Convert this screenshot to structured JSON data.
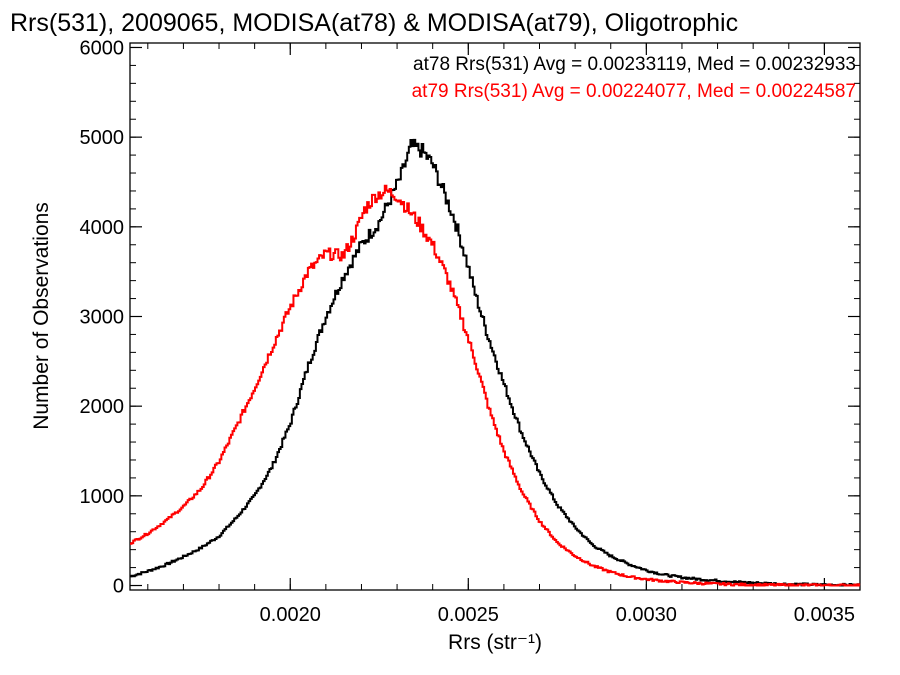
{
  "chart_data": {
    "type": "line",
    "title": "Rrs(531), 2009065, MODISA(at78) & MODISA(at79), Oligotrophic",
    "xlabel": "Rrs (str⁻¹)",
    "ylabel": "Number of Observations",
    "xlim": [
      0.00155,
      0.0036
    ],
    "ylim": [
      -50,
      6050
    ],
    "xticks": [
      0.002,
      0.0025,
      0.003,
      0.0035
    ],
    "xtick_labels": [
      "0.0020",
      "0.0025",
      "0.0030",
      "0.0035"
    ],
    "yticks": [
      0,
      1000,
      2000,
      3000,
      4000,
      5000,
      6000
    ],
    "ytick_labels": [
      "0",
      "1000",
      "2000",
      "3000",
      "4000",
      "5000",
      "6000"
    ],
    "legend_position": "top-right",
    "series": [
      {
        "color": "#000000",
        "label": "at78 Rrs(531) Avg = 0.00233119, Med = 0.00232933",
        "x": [
          0.00155,
          0.0016,
          0.00165,
          0.0017,
          0.00175,
          0.0018,
          0.00185,
          0.0019,
          0.00195,
          0.002,
          0.00205,
          0.0021,
          0.00215,
          0.0022,
          0.00225,
          0.00228,
          0.00231,
          0.00234,
          0.00237,
          0.0024,
          0.00243,
          0.00246,
          0.00249,
          0.00252,
          0.00255,
          0.0026,
          0.00265,
          0.0027,
          0.00275,
          0.0028,
          0.00285,
          0.0029,
          0.00295,
          0.003,
          0.00305,
          0.0031,
          0.00315,
          0.0032,
          0.00325,
          0.0033,
          0.0034,
          0.0035,
          0.0036
        ],
        "y": [
          100,
          160,
          230,
          320,
          420,
          550,
          760,
          1000,
          1330,
          1800,
          2440,
          3000,
          3450,
          3800,
          4050,
          4300,
          4550,
          4900,
          4850,
          4700,
          4400,
          4100,
          3700,
          3250,
          2850,
          2250,
          1700,
          1250,
          900,
          650,
          450,
          330,
          240,
          170,
          120,
          90,
          70,
          55,
          40,
          30,
          15,
          8,
          5
        ]
      },
      {
        "color": "#ff0000",
        "label": "at79 Rrs(531) Avg = 0.00224077, Med = 0.00224587",
        "x": [
          0.00155,
          0.0016,
          0.00165,
          0.0017,
          0.00175,
          0.0018,
          0.00185,
          0.0019,
          0.00195,
          0.002,
          0.00205,
          0.0021,
          0.00215,
          0.00218,
          0.00221,
          0.00224,
          0.00227,
          0.0023,
          0.00233,
          0.00236,
          0.0024,
          0.00244,
          0.00248,
          0.00252,
          0.00256,
          0.0026,
          0.00265,
          0.0027,
          0.00275,
          0.0028,
          0.00285,
          0.0029,
          0.00295,
          0.003,
          0.00305,
          0.0031,
          0.00315,
          0.0032,
          0.00325,
          0.0033,
          0.0034,
          0.0035,
          0.0036
        ],
        "y": [
          470,
          580,
          720,
          880,
          1080,
          1380,
          1780,
          2200,
          2660,
          3100,
          3500,
          3700,
          3680,
          3900,
          4200,
          4350,
          4400,
          4350,
          4200,
          4050,
          3800,
          3450,
          3000,
          2500,
          1950,
          1500,
          1050,
          720,
          480,
          330,
          220,
          150,
          100,
          70,
          50,
          35,
          25,
          18,
          12,
          8,
          5,
          3,
          2
        ]
      }
    ]
  }
}
